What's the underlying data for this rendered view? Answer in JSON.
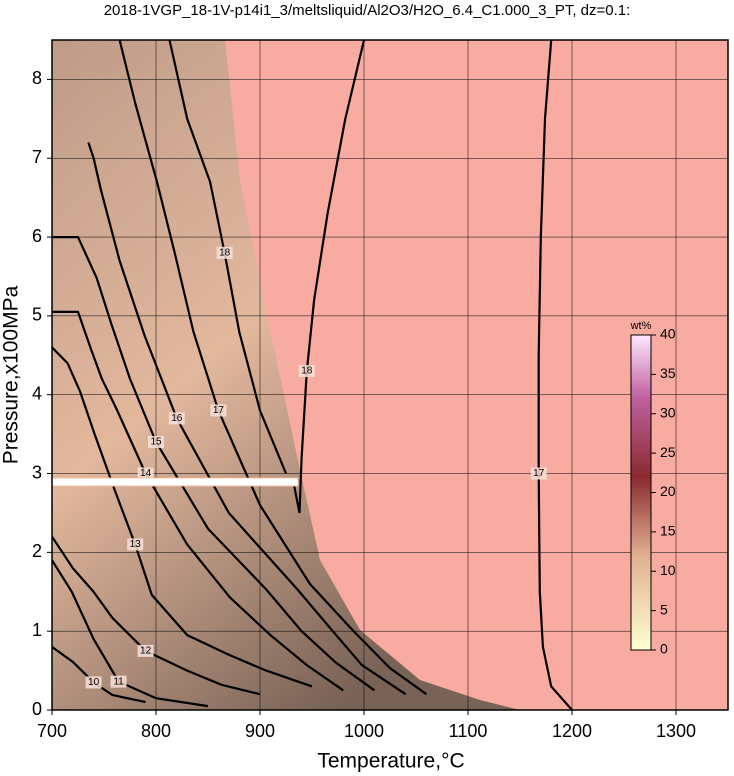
{
  "chart_data": {
    "type": "contour",
    "title": "2018-1VGP_18-1V-p14i1_3/meltsliquid/Al2O3/H2O_6.4_C1.000_3_PT, dz=0.1:",
    "x_label": "Temperature,°C",
    "y_label": "Pressure,x100MPa",
    "xlim": [
      700,
      1350
    ],
    "ylim": [
      0,
      8.5
    ],
    "xticks": [
      700,
      800,
      900,
      1000,
      1100,
      1200,
      1300
    ],
    "yticks": [
      0,
      1,
      2,
      3,
      4,
      5,
      6,
      7,
      8
    ],
    "grid": true,
    "contours": [
      {
        "level": 17,
        "x": [
          1200,
          1180,
          1172,
          1169,
          1168,
          1168,
          1170,
          1174,
          1180
        ],
        "y": [
          0,
          0.3,
          0.8,
          1.5,
          3,
          4.5,
          6,
          7.5,
          8.5
        ]
      },
      {
        "level": 18,
        "x": [
          1000,
          982,
          965,
          952,
          945,
          940,
          938,
          932
        ],
        "y": [
          8.5,
          7.5,
          6.3,
          5.2,
          4.3,
          3.2,
          2.5,
          2.9
        ]
      },
      {
        "level": 18,
        "x": [
          813,
          830,
          852,
          866,
          880,
          900,
          925
        ],
        "y": [
          8.5,
          7.5,
          6.7,
          5.8,
          4.8,
          3.8,
          3.0
        ]
      },
      {
        "level": 17,
        "x": [
          765,
          780,
          801,
          818,
          836,
          860,
          900,
          948,
          990,
          1025,
          1060
        ],
        "y": [
          8.5,
          7.7,
          6.7,
          5.8,
          4.8,
          3.8,
          2.6,
          1.6,
          1.0,
          0.53,
          0.2
        ]
      },
      {
        "level": 16,
        "x": [
          735,
          740,
          747,
          765,
          789,
          820,
          870,
          936,
          970,
          998,
          1040
        ],
        "y": [
          7.2,
          7.0,
          6.6,
          5.7,
          4.75,
          3.7,
          2.5,
          1.53,
          1.0,
          0.57,
          0.2
        ]
      },
      {
        "level": 15,
        "x": [
          700,
          725,
          743,
          757,
          775,
          800,
          850,
          906,
          940,
          973,
          1010
        ],
        "y": [
          6.0,
          6.0,
          5.48,
          4.9,
          4.2,
          3.4,
          2.3,
          1.53,
          1.0,
          0.6,
          0.25
        ]
      },
      {
        "level": 14,
        "x": [
          700,
          725,
          738,
          748,
          762,
          790,
          830,
          871,
          910,
          945,
          980
        ],
        "y": [
          5.05,
          5.05,
          4.56,
          4.2,
          3.82,
          3.0,
          2.1,
          1.43,
          0.95,
          0.57,
          0.25
        ]
      },
      {
        "level": 13,
        "x": [
          700,
          715,
          727,
          741,
          760,
          780,
          796,
          830,
          870,
          906,
          950
        ],
        "y": [
          4.6,
          4.4,
          4.04,
          3.5,
          2.8,
          2.1,
          1.46,
          0.95,
          0.7,
          0.5,
          0.3
        ]
      },
      {
        "level": 12,
        "x": [
          700,
          720,
          740,
          758,
          790,
          830,
          863,
          900
        ],
        "y": [
          2.2,
          1.8,
          1.5,
          1.17,
          0.75,
          0.5,
          0.32,
          0.2
        ]
      },
      {
        "level": 11,
        "x": [
          700,
          719,
          740,
          764,
          800,
          850
        ],
        "y": [
          1.9,
          1.5,
          0.9,
          0.36,
          0.15,
          0.05
        ]
      },
      {
        "level": 10,
        "x": [
          700,
          720,
          740,
          758,
          790
        ],
        "y": [
          0.8,
          0.61,
          0.35,
          0.19,
          0.1
        ]
      }
    ],
    "colorbar": {
      "label": "wt%",
      "lim": [
        0,
        40
      ],
      "ticks": [
        0,
        5,
        10,
        15,
        20,
        25,
        30,
        35,
        40
      ]
    }
  }
}
